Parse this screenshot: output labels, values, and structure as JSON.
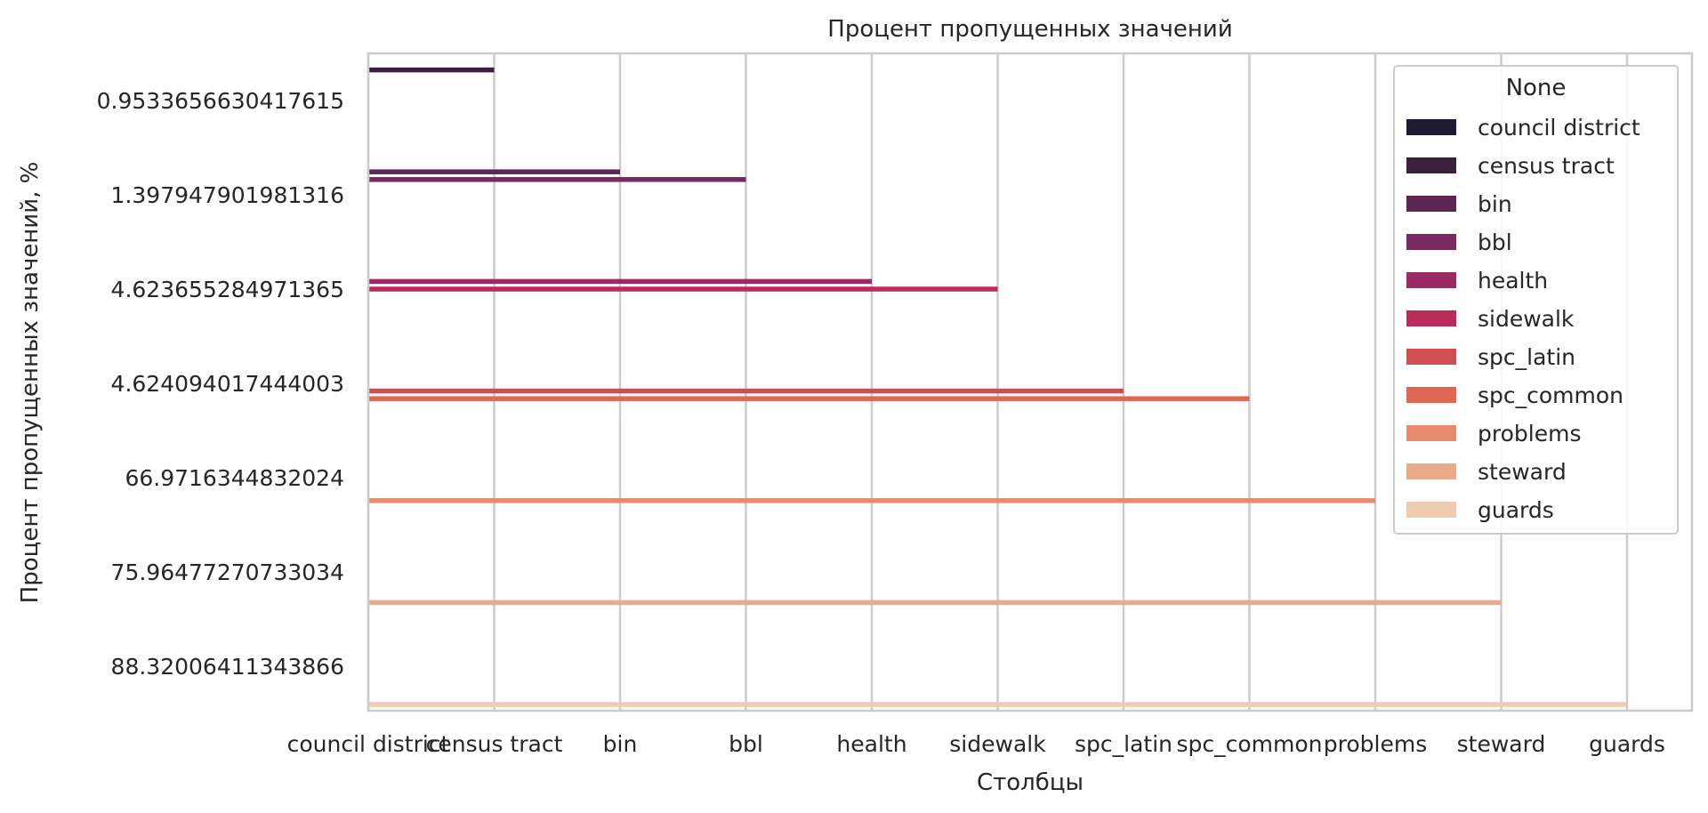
{
  "chart_data": {
    "type": "bar",
    "orientation": "horizontal",
    "title": "Процент пропущенных значений",
    "xlabel": "Столбцы",
    "ylabel": "Процент пропущенных значений, %",
    "x_tick_labels": [
      "council district",
      "census tract",
      "bin",
      "bbl",
      "health",
      "sidewalk",
      "spc_latin",
      "spc_common",
      "problems",
      "steward",
      "guards"
    ],
    "y_tick_labels": [
      "0.9533656630417615",
      "1.397947901981316",
      "4.623655284971365",
      "4.624094017444003",
      "66.9716344832024",
      "75.96477270733034",
      "88.32006411343866"
    ],
    "grid": "vertical",
    "legend": {
      "title": "None",
      "placement": "top-right",
      "entries": [
        "council district",
        "census tract",
        "bin",
        "bbl",
        "health",
        "sidewalk",
        "spc_latin",
        "spc_common",
        "problems",
        "steward",
        "guards"
      ]
    },
    "bars": [
      {
        "hue": "census tract",
        "y_category": "0.9533656630417615",
        "value": 1
      },
      {
        "hue": "bin",
        "y_category": "1.397947901981316",
        "value": 2
      },
      {
        "hue": "bbl",
        "y_category": "1.397947901981316",
        "value": 3
      },
      {
        "hue": "health",
        "y_category": "4.623655284971365",
        "value": 4
      },
      {
        "hue": "sidewalk",
        "y_category": "4.623655284971365",
        "value": 5
      },
      {
        "hue": "spc_latin",
        "y_category": "4.624094017444003",
        "value": 6
      },
      {
        "hue": "spc_common",
        "y_category": "4.624094017444003",
        "value": 7
      },
      {
        "hue": "problems",
        "y_category": "66.9716344832024",
        "value": 8
      },
      {
        "hue": "steward",
        "y_category": "75.96477270733034",
        "value": 9
      },
      {
        "hue": "guards",
        "y_category": "88.32006411343866",
        "value": 10
      }
    ],
    "colors": {
      "council district": "#1f1933",
      "census tract": "#3b203e",
      "bin": "#5b2653",
      "bbl": "#7a2861",
      "health": "#9b2963",
      "sidewalk": "#bb2c5a",
      "spc_latin": "#d24d4f",
      "spc_common": "#e06853",
      "problems": "#e68c6c",
      "steward": "#eaaa8b",
      "guards": "#f0cbb4"
    }
  }
}
